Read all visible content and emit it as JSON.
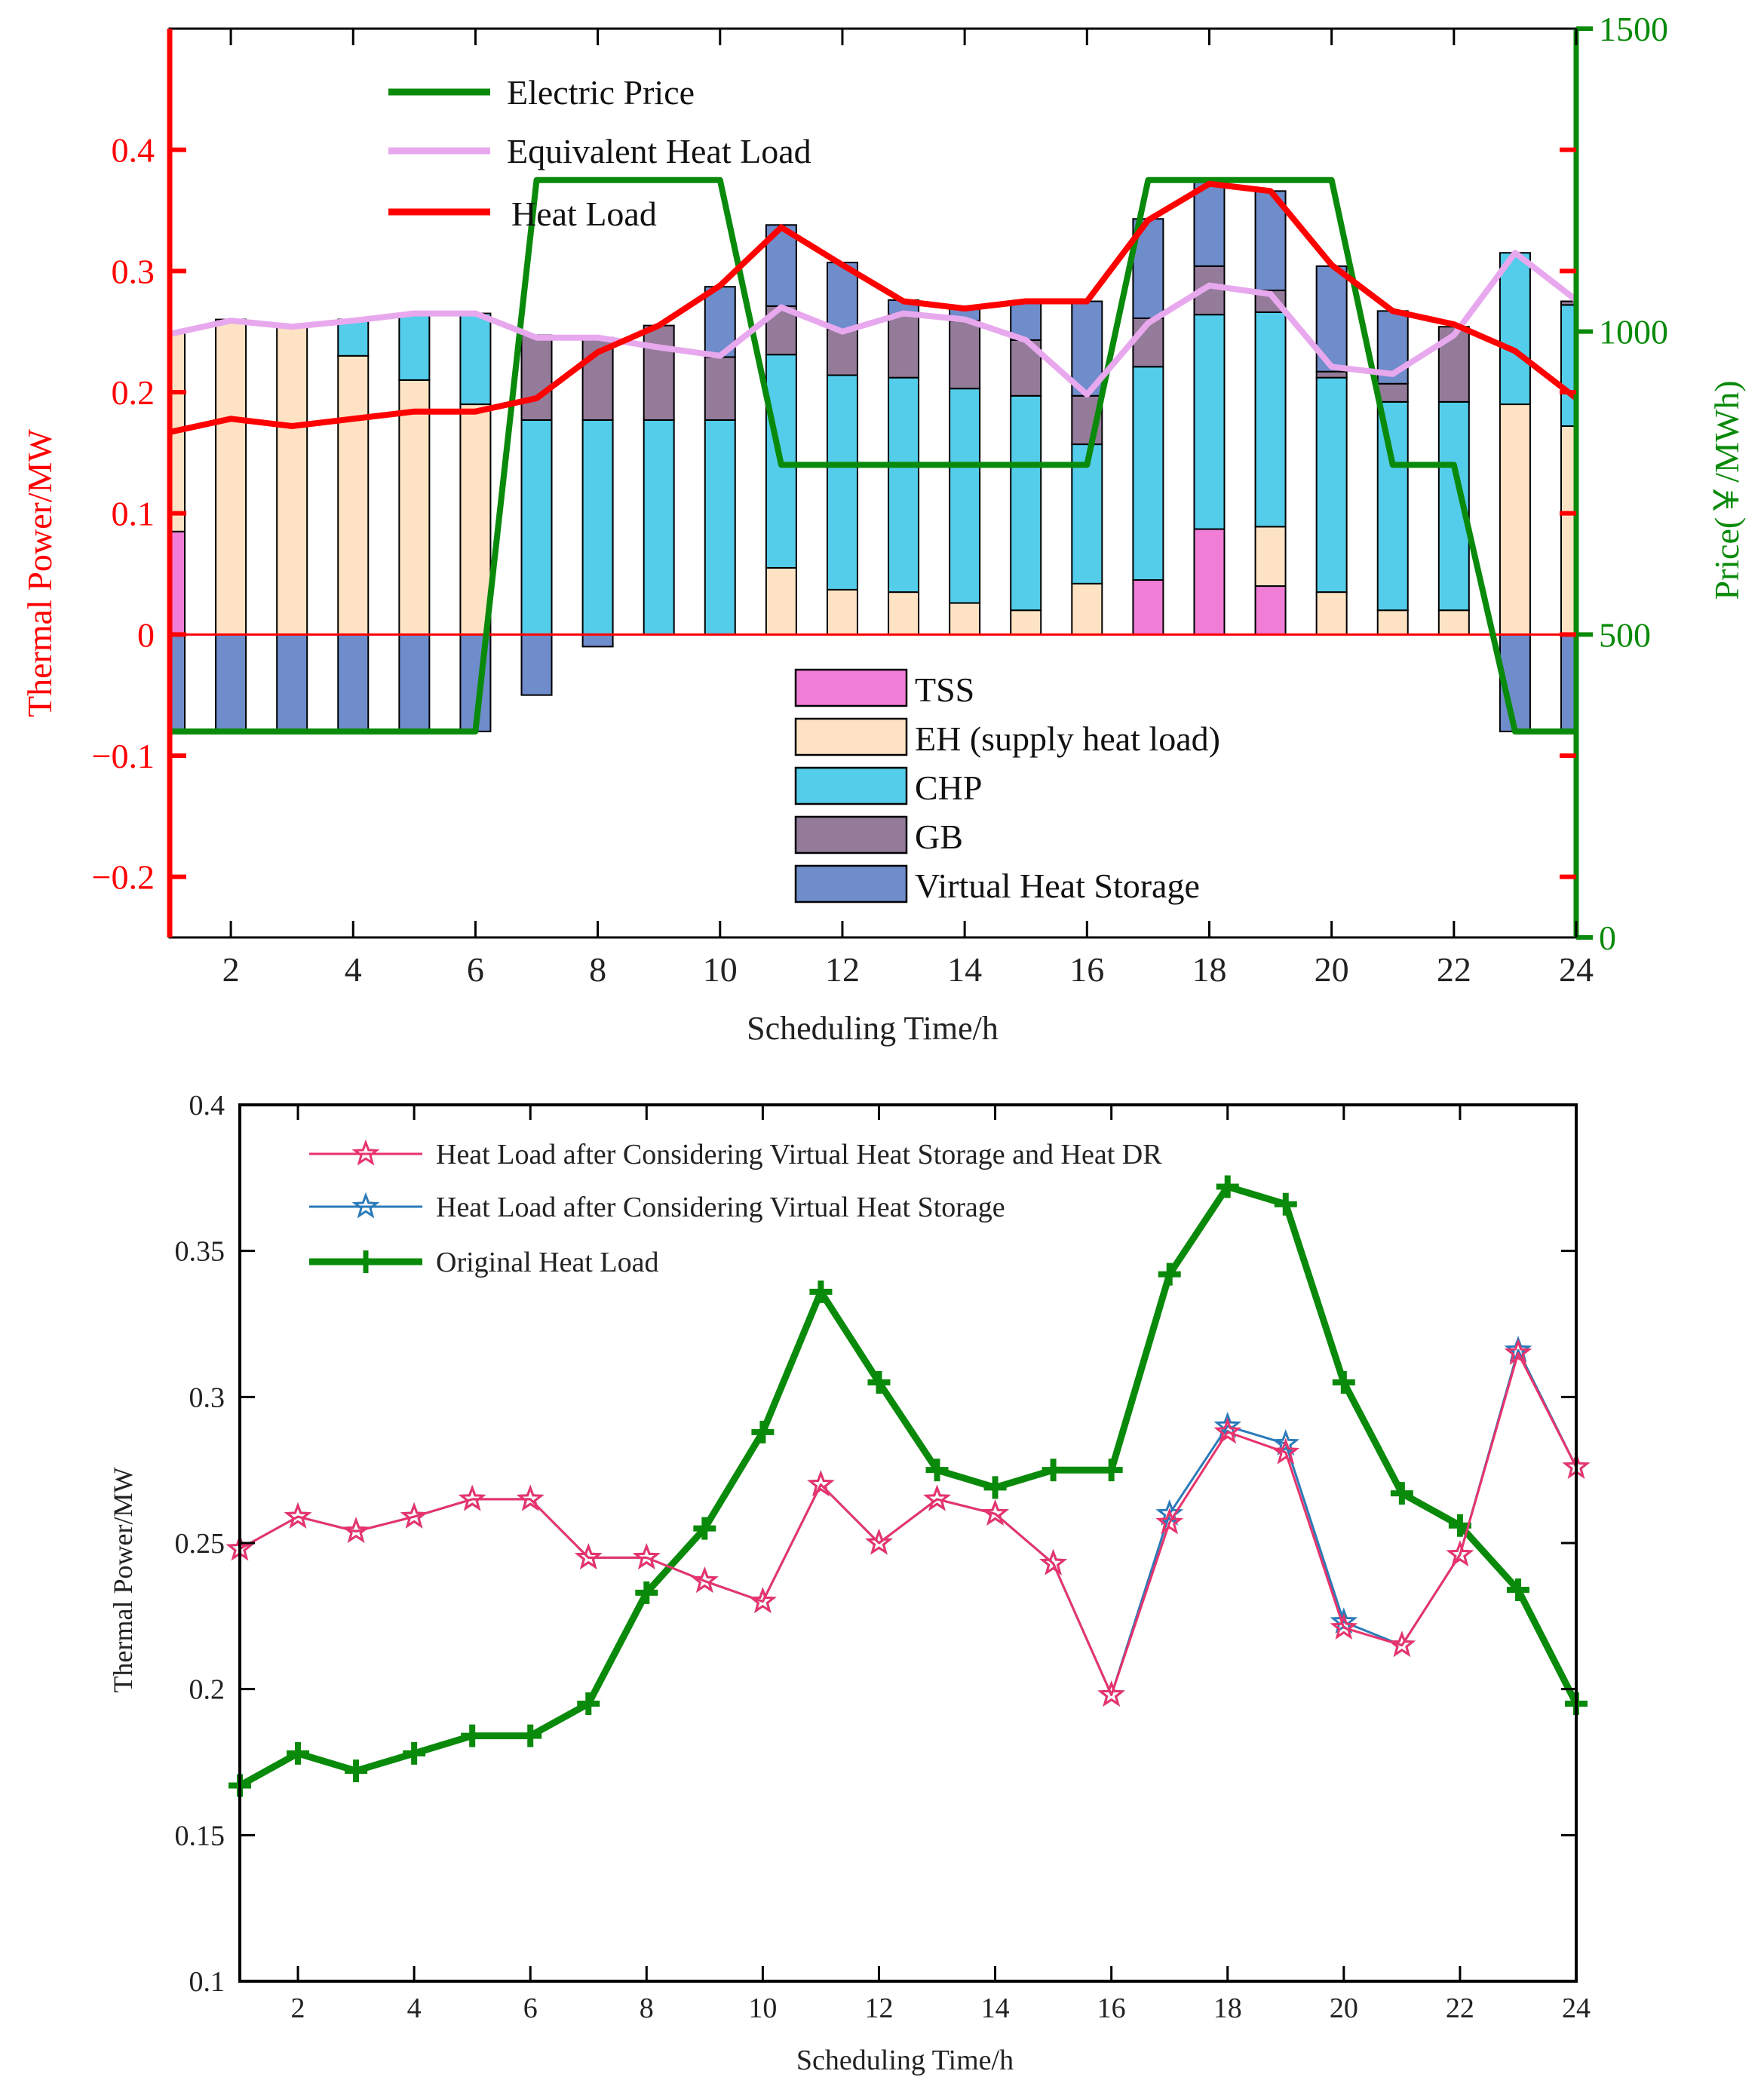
{
  "chart_data": [
    {
      "type": "bar",
      "stacked": true,
      "title": "",
      "xlabel": "Scheduling Time/h",
      "ylabel": "Thermal Power/MW",
      "y2label": "Price(￥/MWh)",
      "x": [
        1,
        2,
        3,
        4,
        5,
        6,
        7,
        8,
        9,
        10,
        11,
        12,
        13,
        14,
        15,
        16,
        17,
        18,
        19,
        20,
        21,
        22,
        23,
        24
      ],
      "xlim": [
        1,
        24
      ],
      "ylim": [
        -0.25,
        0.5
      ],
      "y2lim": [
        0,
        1500
      ],
      "xticks": [
        2,
        4,
        6,
        8,
        10,
        12,
        14,
        16,
        18,
        20,
        22,
        24
      ],
      "xtick_labels": [
        "2",
        "4",
        "6",
        "8",
        "10",
        "12",
        "14",
        "16",
        "18",
        "20",
        "22",
        "24"
      ],
      "yticks": [
        -0.2,
        -0.1,
        0,
        0.1,
        0.2,
        0.3,
        0.4
      ],
      "ytick_labels": [
        "−0.2",
        "−0.1",
        "0",
        "0.1",
        "0.2",
        "0.3",
        "0.4"
      ],
      "y2ticks": [
        0,
        500,
        1000,
        1500
      ],
      "y2tick_labels": [
        "0",
        "500",
        "1000",
        "1500"
      ],
      "legend_lines": [
        "Electric Price",
        "Equivalent Heat Load",
        "Heat Load"
      ],
      "legend_bars": [
        "TSS",
        "EH (supply heat load)",
        "CHP",
        "GB",
        "Virtual Heat Storage"
      ],
      "bar_series": [
        {
          "name": "TSS",
          "color": "#f07dd6",
          "values": [
            0.085,
            0,
            0,
            0,
            0,
            0,
            0,
            0,
            0,
            0,
            0,
            0,
            0,
            0,
            0,
            0,
            0.045,
            0.087,
            0.04,
            0,
            0,
            0,
            0,
            0
          ]
        },
        {
          "name": "EH (supply heat load)",
          "color": "#fde3c4",
          "values": [
            0.165,
            0.26,
            0.254,
            0.23,
            0.21,
            0.19,
            0,
            0,
            0,
            0,
            0.055,
            0.037,
            0.035,
            0.026,
            0.02,
            0.042,
            0,
            0,
            0.049,
            0.035,
            0.02,
            0.02,
            0.19,
            0.172
          ]
        },
        {
          "name": "CHP",
          "color": "#53cdea",
          "values": [
            0,
            0,
            0,
            0.03,
            0.055,
            0.075,
            0.177,
            0.177,
            0.177,
            0.177,
            0.176,
            0.177,
            0.177,
            0.177,
            0.177,
            0.115,
            0.176,
            0.177,
            0.177,
            0.177,
            0.172,
            0.172,
            0.125,
            0.1
          ]
        },
        {
          "name": "GB",
          "color": "#947b9a",
          "values": [
            0,
            0,
            0,
            0,
            0,
            0,
            0.07,
            0.068,
            0.078,
            0.052,
            0.04,
            0.038,
            0.052,
            0.056,
            0.046,
            0.04,
            0.04,
            0.04,
            0.018,
            0.005,
            0.015,
            0.062,
            0,
            0.003
          ]
        },
        {
          "name": "Virtual Heat Storage",
          "color": "#6f8ccb",
          "values": [
            -0.08,
            -0.08,
            -0.08,
            -0.08,
            -0.08,
            -0.08,
            -0.05,
            -0.01,
            0,
            0.058,
            0.067,
            0.055,
            0.012,
            0.01,
            0.032,
            0.078,
            0.082,
            0.07,
            0.082,
            0.087,
            0.06,
            0,
            -0.08,
            -0.08
          ]
        }
      ],
      "line_series": [
        {
          "name": "Electric Price",
          "color": "#0a8a0a",
          "axis": "right",
          "values": [
            340,
            340,
            340,
            340,
            340,
            340,
            1250,
            1250,
            1250,
            1250,
            780,
            780,
            780,
            780,
            780,
            780,
            1250,
            1250,
            1250,
            1250,
            780,
            780,
            340,
            340
          ]
        },
        {
          "name": "Equivalent Heat Load",
          "color": "#e8a8ee",
          "axis": "left",
          "values": [
            0.248,
            0.259,
            0.254,
            0.259,
            0.265,
            0.265,
            0.245,
            0.245,
            0.237,
            0.23,
            0.27,
            0.25,
            0.265,
            0.26,
            0.243,
            0.198,
            0.257,
            0.288,
            0.281,
            0.221,
            0.215,
            0.247,
            0.315,
            0.276
          ]
        },
        {
          "name": "Heat Load",
          "color": "#ff0000",
          "axis": "left",
          "values": [
            0.167,
            0.178,
            0.172,
            0.178,
            0.184,
            0.184,
            0.195,
            0.233,
            0.255,
            0.288,
            0.336,
            0.305,
            0.275,
            0.269,
            0.275,
            0.275,
            0.342,
            0.372,
            0.366,
            0.305,
            0.267,
            0.256,
            0.234,
            0.195
          ]
        }
      ]
    },
    {
      "type": "line",
      "title": "",
      "xlabel": "Scheduling Time/h",
      "ylabel": "Thermal Power/MW",
      "x": [
        1,
        2,
        3,
        4,
        5,
        6,
        7,
        8,
        9,
        10,
        11,
        12,
        13,
        14,
        15,
        16,
        17,
        18,
        19,
        20,
        21,
        22,
        23,
        24
      ],
      "xlim": [
        1,
        24
      ],
      "ylim": [
        0.1,
        0.4
      ],
      "xticks": [
        2,
        4,
        6,
        8,
        10,
        12,
        14,
        16,
        18,
        20,
        22,
        24
      ],
      "xtick_labels": [
        "2",
        "4",
        "6",
        "8",
        "10",
        "12",
        "14",
        "16",
        "18",
        "20",
        "22",
        "24"
      ],
      "yticks": [
        0.1,
        0.15,
        0.2,
        0.25,
        0.3,
        0.35,
        0.4
      ],
      "ytick_labels": [
        "0.1",
        "0.15",
        "0.2",
        "0.25",
        "0.3",
        "0.35",
        "0.4"
      ],
      "series": [
        {
          "name": "Heat Load after Considering Virtual Heat Storage and Heat DR",
          "color": "#e8336c",
          "marker": "star",
          "values": [
            0.248,
            0.259,
            0.254,
            0.259,
            0.265,
            0.265,
            0.245,
            0.245,
            0.237,
            0.23,
            0.27,
            0.25,
            0.265,
            0.26,
            0.243,
            0.198,
            0.257,
            0.288,
            0.281,
            0.221,
            0.215,
            0.246,
            0.315,
            0.276
          ]
        },
        {
          "name": "Heat Load after Considering Virtual Heat Storage",
          "color": "#2b7bb9",
          "marker": "star",
          "values": [
            0.248,
            0.259,
            0.254,
            0.259,
            0.265,
            0.265,
            0.245,
            0.245,
            0.237,
            0.23,
            0.27,
            0.25,
            0.265,
            0.26,
            0.243,
            0.198,
            0.26,
            0.29,
            0.284,
            0.223,
            0.215,
            0.246,
            0.316,
            0.276
          ]
        },
        {
          "name": "Original Heat Load",
          "color": "#0a8a0a",
          "marker": "plus",
          "values": [
            0.167,
            0.178,
            0.172,
            0.178,
            0.184,
            0.184,
            0.195,
            0.233,
            0.255,
            0.288,
            0.336,
            0.305,
            0.275,
            0.269,
            0.275,
            0.275,
            0.342,
            0.372,
            0.366,
            0.305,
            0.267,
            0.256,
            0.234,
            0.195
          ]
        }
      ]
    }
  ]
}
